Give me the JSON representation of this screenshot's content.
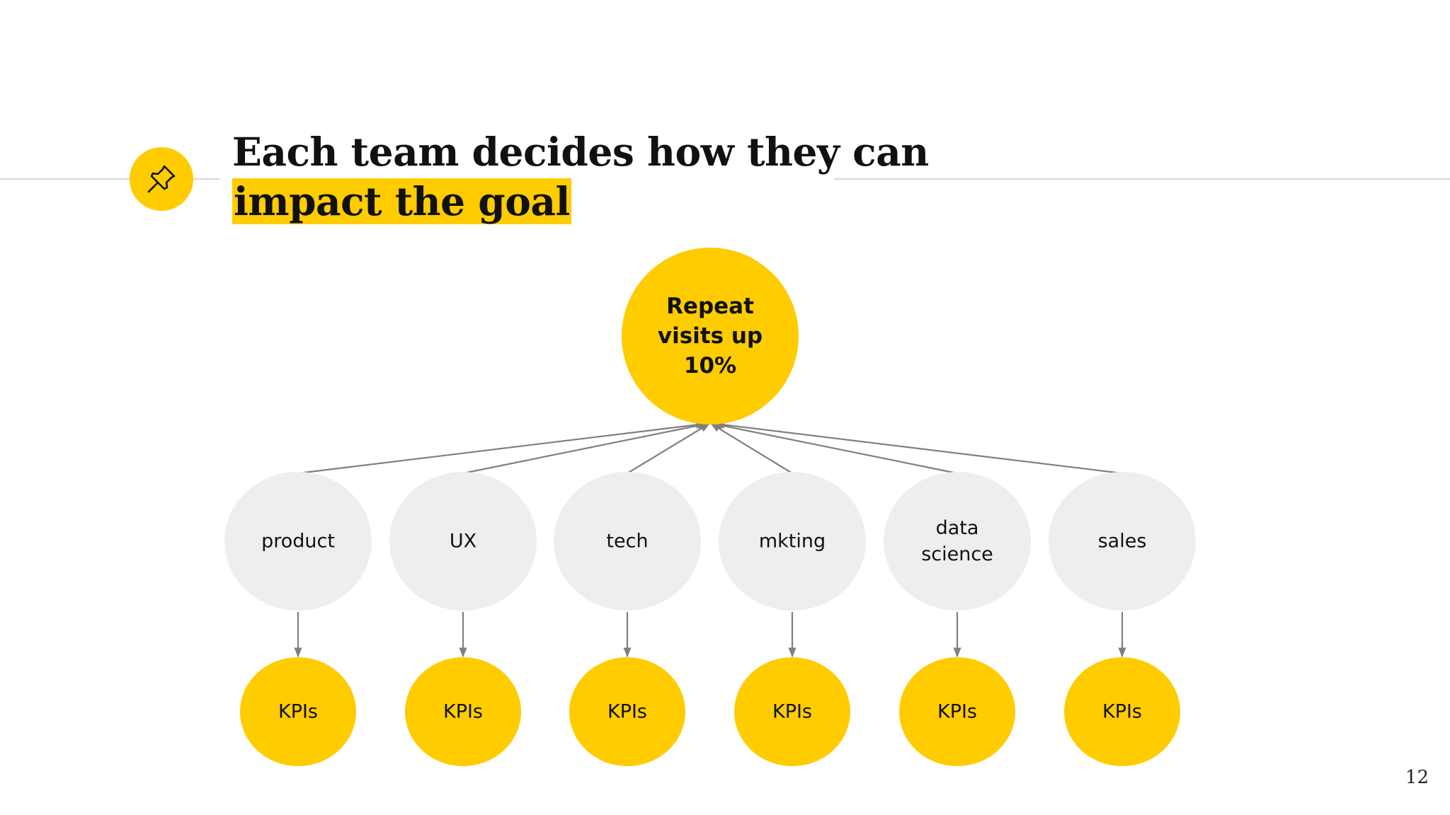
{
  "slide": {
    "title_line1": "Each team decides how they can",
    "title_line2": "impact the goal",
    "page_number": "12",
    "icon": "pushpin-icon"
  },
  "colors": {
    "accent": "#ffcc00",
    "team_fill": "#efeeed",
    "connector": "#808080",
    "text": "#111111"
  },
  "diagram": {
    "goal": {
      "lines": [
        "Repeat",
        "visits up",
        "10%"
      ]
    },
    "teams": [
      {
        "lines": [
          "product"
        ],
        "kpi": "KPIs"
      },
      {
        "lines": [
          "UX"
        ],
        "kpi": "KPIs"
      },
      {
        "lines": [
          "tech"
        ],
        "kpi": "KPIs"
      },
      {
        "lines": [
          "mkting"
        ],
        "kpi": "KPIs"
      },
      {
        "lines": [
          "data",
          "science"
        ],
        "kpi": "KPIs"
      },
      {
        "lines": [
          "sales"
        ],
        "kpi": "KPIs"
      }
    ]
  }
}
